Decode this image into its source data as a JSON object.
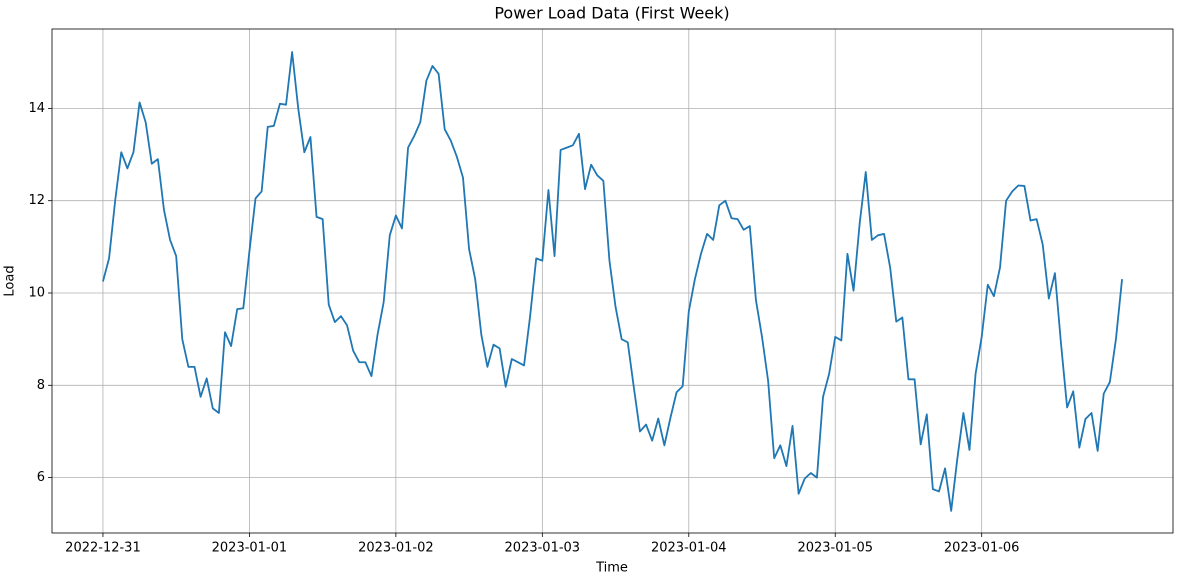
{
  "chart_data": {
    "type": "line",
    "title": "Power Load Data (First Week)",
    "xlabel": "Time",
    "ylabel": "Load",
    "color": "#1f77b4",
    "grid": true,
    "x": [
      0,
      1,
      2,
      3,
      4,
      5,
      6,
      7,
      8,
      9,
      10,
      11,
      12,
      13,
      14,
      15,
      16,
      17,
      18,
      19,
      20,
      21,
      22,
      23,
      24,
      25,
      26,
      27,
      28,
      29,
      30,
      31,
      32,
      33,
      34,
      35,
      36,
      37,
      38,
      39,
      40,
      41,
      42,
      43,
      44,
      45,
      46,
      47,
      48,
      49,
      50,
      51,
      52,
      53,
      54,
      55,
      56,
      57,
      58,
      59,
      60,
      61,
      62,
      63,
      64,
      65,
      66,
      67,
      68,
      69,
      70,
      71,
      72,
      73,
      74,
      75,
      76,
      77,
      78,
      79,
      80,
      81,
      82,
      83,
      84,
      85,
      86,
      87,
      88,
      89,
      90,
      91,
      92,
      93,
      94,
      95,
      96,
      97,
      98,
      99,
      100,
      101,
      102,
      103,
      104,
      105,
      106,
      107,
      108,
      109,
      110,
      111,
      112,
      113,
      114,
      115,
      116,
      117,
      118,
      119,
      120,
      121,
      122,
      123,
      124,
      125,
      126,
      127,
      128,
      129,
      130,
      131,
      132,
      133,
      134,
      135,
      136,
      137,
      138,
      139,
      140,
      141,
      142,
      143,
      144,
      145,
      146,
      147,
      148,
      149,
      150,
      151,
      152,
      153,
      154,
      155,
      156,
      157,
      158,
      159,
      160,
      161,
      162,
      163,
      164,
      165,
      166,
      167
    ],
    "values": [
      10.25,
      10.75,
      12.0,
      13.05,
      12.7,
      13.05,
      14.13,
      13.7,
      12.8,
      12.9,
      11.8,
      11.15,
      10.8,
      9.0,
      8.4,
      8.4,
      7.75,
      8.15,
      7.5,
      7.4,
      9.15,
      8.85,
      9.65,
      9.67,
      10.9,
      12.05,
      12.2,
      13.6,
      13.62,
      14.1,
      14.08,
      15.22,
      14.0,
      13.05,
      13.38,
      11.65,
      11.6,
      9.75,
      9.37,
      9.5,
      9.3,
      8.75,
      8.5,
      8.5,
      8.2,
      9.1,
      9.8,
      11.25,
      11.68,
      11.4,
      13.15,
      13.4,
      13.7,
      14.6,
      14.92,
      14.75,
      13.55,
      13.3,
      12.95,
      12.5,
      10.95,
      10.3,
      9.1,
      8.4,
      8.88,
      8.8,
      7.97,
      8.57,
      8.5,
      8.43,
      9.5,
      10.75,
      10.7,
      12.23,
      10.8,
      13.1,
      13.15,
      13.2,
      13.45,
      12.25,
      12.78,
      12.55,
      12.43,
      10.7,
      9.7,
      9.0,
      8.93,
      7.95,
      7.0,
      7.15,
      6.8,
      7.28,
      6.7,
      7.3,
      7.85,
      7.98,
      9.6,
      10.3,
      10.85,
      11.28,
      11.15,
      11.9,
      12.0,
      11.62,
      11.6,
      11.37,
      11.45,
      9.85,
      9.05,
      8.1,
      6.42,
      6.7,
      6.25,
      7.12,
      5.65,
      5.98,
      6.1,
      6.0,
      7.75,
      8.25,
      9.05,
      8.97,
      10.85,
      10.05,
      11.5,
      12.62,
      11.15,
      11.25,
      11.28,
      10.55,
      9.38,
      9.47,
      8.13,
      8.13,
      6.72,
      7.37,
      5.75,
      5.7,
      6.2,
      5.28,
      6.4,
      7.4,
      6.6,
      8.25,
      9.05,
      10.18,
      9.93,
      10.55,
      12.0,
      12.2,
      12.33,
      12.32,
      11.57,
      11.6,
      11.05,
      9.88,
      10.43,
      8.9,
      7.52,
      7.87,
      6.65,
      7.27,
      7.4,
      6.58,
      7.82,
      8.07,
      9.0,
      10.3
    ],
    "xlim": [
      -8.35,
      175.35
    ],
    "xticks": [
      {
        "value": 0,
        "label": "2022-12-31"
      },
      {
        "value": 24,
        "label": "2023-01-01"
      },
      {
        "value": 48,
        "label": "2023-01-02"
      },
      {
        "value": 72,
        "label": "2023-01-03"
      },
      {
        "value": 96,
        "label": "2023-01-04"
      },
      {
        "value": 120,
        "label": "2023-01-05"
      },
      {
        "value": 144,
        "label": "2023-01-06"
      }
    ],
    "ylim": [
      4.8,
      15.72
    ],
    "yticks": [
      6,
      8,
      10,
      12,
      14
    ]
  }
}
